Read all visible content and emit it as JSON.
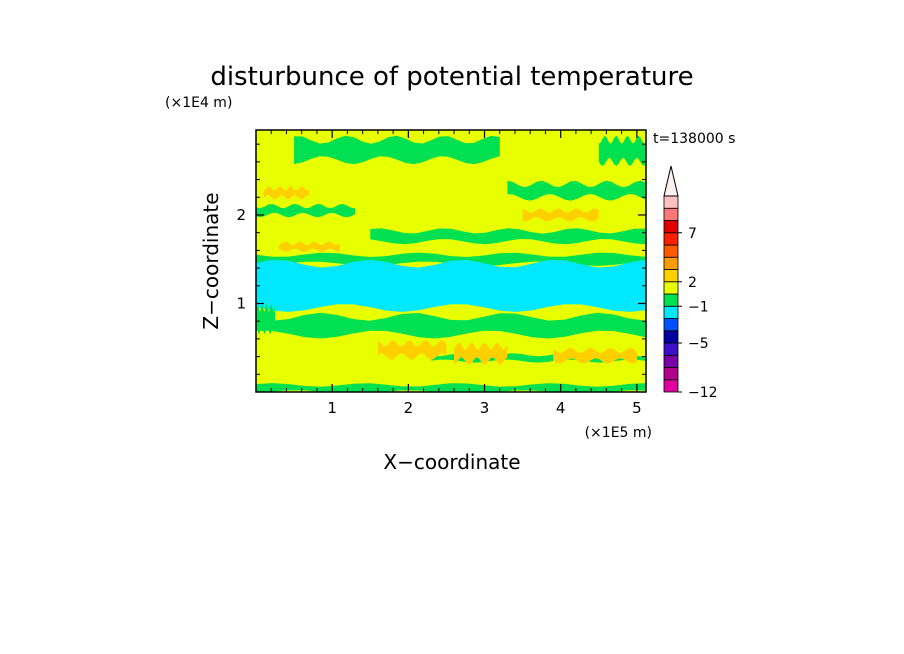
{
  "chart_data": {
    "type": "heatmap",
    "title": "disturbunce of potential temperature",
    "xlabel": "X−coordinate",
    "ylabel": "Z−coordinate",
    "x_scale_label": "(×1E5 m)",
    "y_scale_label": "(×1E4 m)",
    "time_label": "t=138000 s",
    "x_range": [
      0,
      5.12
    ],
    "y_range": [
      0,
      2.96
    ],
    "x_ticks": [
      "1",
      "2",
      "3",
      "4",
      "5"
    ],
    "x_tick_values": [
      1,
      2,
      3,
      4,
      5
    ],
    "y_ticks": [
      "1",
      "2"
    ],
    "y_tick_values": [
      1,
      2
    ],
    "colorbar": {
      "colors": [
        "#e000a0",
        "#b0008c",
        "#7a00a8",
        "#3c10c8",
        "#0000a0",
        "#0050ff",
        "#00e8ff",
        "#00e050",
        "#e8ff00",
        "#ffd000",
        "#ff9c00",
        "#ff5a00",
        "#ff2000",
        "#e00000",
        "#ff7878",
        "#ffc0c0"
      ],
      "labels": [
        "−12",
        "−5",
        "−1",
        "2",
        "7"
      ],
      "label_levels": [
        0,
        4,
        7,
        9,
        13
      ],
      "extend_max": true
    },
    "field_colors": {
      "background": "#e8ff00",
      "green": "#00e050",
      "cyan": "#00e8ff",
      "orange": "#ffd000",
      "blue": "#0050ff"
    },
    "regions": [
      {
        "level": "green",
        "x0": 0.0,
        "x1": 5.12,
        "y0": 1.45,
        "y1": 1.55
      },
      {
        "level": "cyan",
        "x0": 0.0,
        "x1": 5.12,
        "y0": 0.95,
        "y1": 1.45
      },
      {
        "level": "green",
        "x0": 0.0,
        "x1": 5.12,
        "y0": 0.65,
        "y1": 0.85
      },
      {
        "level": "green",
        "x0": 0.0,
        "x1": 5.12,
        "y0": 0.0,
        "y1": 0.08
      },
      {
        "level": "green",
        "x0": 0.0,
        "x1": 1.3,
        "y0": 2.0,
        "y1": 2.1
      },
      {
        "level": "green",
        "x0": 1.5,
        "x1": 5.12,
        "y0": 1.7,
        "y1": 1.82
      },
      {
        "level": "green",
        "x0": 2.3,
        "x1": 5.12,
        "y0": 0.35,
        "y1": 0.42
      },
      {
        "level": "green",
        "x0": 0.5,
        "x1": 3.2,
        "y0": 2.62,
        "y1": 2.85
      },
      {
        "level": "green",
        "x0": 4.5,
        "x1": 5.12,
        "y0": 2.6,
        "y1": 2.85
      },
      {
        "level": "green",
        "x0": 3.3,
        "x1": 5.12,
        "y0": 2.2,
        "y1": 2.35
      },
      {
        "level": "orange",
        "x0": 0.1,
        "x1": 0.7,
        "y0": 2.2,
        "y1": 2.3
      },
      {
        "level": "orange",
        "x0": 3.5,
        "x1": 4.5,
        "y0": 1.95,
        "y1": 2.05
      },
      {
        "level": "orange",
        "x0": 0.3,
        "x1": 1.1,
        "y0": 1.6,
        "y1": 1.68
      },
      {
        "level": "orange",
        "x0": 1.6,
        "x1": 2.5,
        "y0": 0.4,
        "y1": 0.55
      },
      {
        "level": "orange",
        "x0": 2.6,
        "x1": 3.3,
        "y0": 0.35,
        "y1": 0.52
      },
      {
        "level": "orange",
        "x0": 3.9,
        "x1": 5.0,
        "y0": 0.35,
        "y1": 0.47
      },
      {
        "level": "green",
        "x0": 0.0,
        "x1": 0.25,
        "y0": 0.7,
        "y1": 0.95
      }
    ]
  }
}
